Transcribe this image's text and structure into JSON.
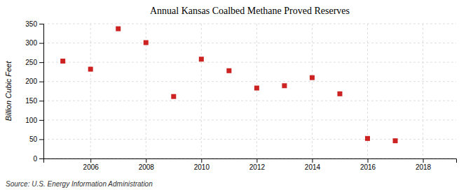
{
  "chart_data": {
    "type": "scatter",
    "title": "Annual Kansas Coalbed Methane Proved Reserves",
    "ylabel": "Billion Cubic Feet",
    "annotations": [
      "Source: U.S. Energy Information Administration"
    ],
    "x": [
      2005,
      2006,
      2007,
      2008,
      2009,
      2010,
      2011,
      2012,
      2013,
      2014,
      2015,
      2016,
      2017
    ],
    "values": [
      253,
      232,
      337,
      301,
      161,
      258,
      228,
      183,
      189,
      210,
      168,
      52,
      46
    ],
    "color": "#cc2222",
    "marker": "square",
    "xlim": [
      2004.3,
      2019.2
    ],
    "xticks": [
      2006,
      2008,
      2010,
      2012,
      2014,
      2016,
      2018
    ],
    "ylim": [
      0,
      350
    ],
    "yticks": [
      0,
      50,
      100,
      150,
      200,
      250,
      300,
      350
    ],
    "grid": true
  }
}
